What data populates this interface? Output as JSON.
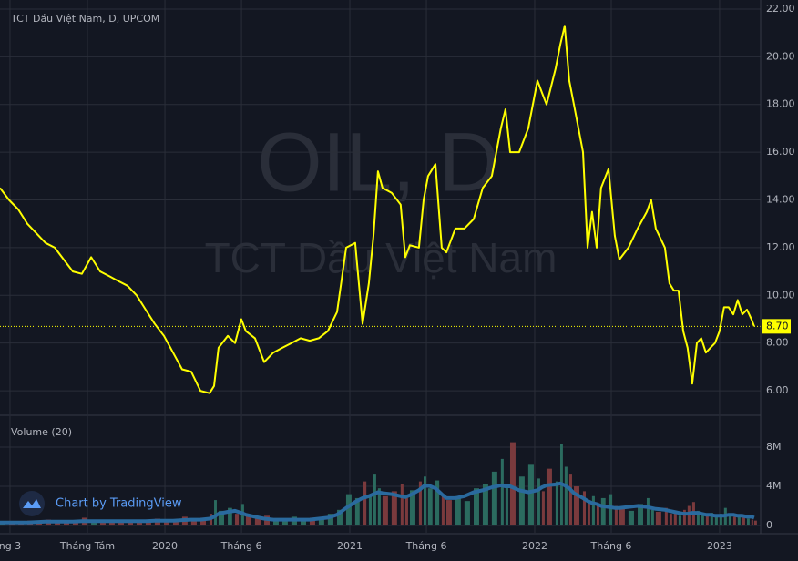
{
  "chart_data": [
    {
      "type": "line",
      "title": "TCT Dầu Việt Nam, D, UPCOM",
      "watermark": "OIL, D",
      "watermark_subtitle": "TCT Dầu Việt Nam",
      "x": [
        2019.108,
        2019.157,
        2019.207,
        2019.256,
        2019.305,
        2019.354,
        2019.404,
        2019.453,
        2019.502,
        2019.551,
        2019.601,
        2019.65,
        2019.699,
        2019.748,
        2019.798,
        2019.847,
        2019.896,
        2019.945,
        2019.995,
        2020.044,
        2020.093,
        2020.142,
        2020.192,
        2020.241,
        2020.266,
        2020.29,
        2020.34,
        2020.379,
        2020.413,
        2020.438,
        2020.487,
        2020.537,
        2020.586,
        2020.635,
        2020.684,
        2020.734,
        2020.783,
        2020.832,
        2020.881,
        2020.931,
        2020.98,
        2021.029,
        2021.069,
        2021.103,
        2021.128,
        2021.152,
        2021.177,
        2021.226,
        2021.275,
        2021.3,
        2021.325,
        2021.374,
        2021.399,
        2021.423,
        2021.463,
        2021.497,
        2021.522,
        2021.571,
        2021.62,
        2021.67,
        2021.719,
        2021.768,
        2021.817,
        2021.842,
        2021.867,
        2021.916,
        2021.965,
        2022.015,
        2022.039,
        2022.064,
        2022.113,
        2022.138,
        2022.162,
        2022.187,
        2022.212,
        2022.261,
        2022.286,
        2022.31,
        2022.335,
        2022.359,
        2022.399,
        2022.433,
        2022.458,
        2022.507,
        2022.557,
        2022.606,
        2022.63,
        2022.655,
        2022.704,
        2022.729,
        2022.753,
        2022.778,
        2022.803,
        2022.827,
        2022.852,
        2022.877,
        2022.901,
        2022.926,
        2022.95,
        2022.975,
        2023.0,
        2023.024,
        2023.049,
        2023.074,
        2023.098,
        2023.123,
        2023.148,
        2023.172,
        2023.187
      ],
      "series": [
        {
          "color": "#ffff00",
          "values": [
            14.5,
            14.0,
            13.6,
            13.0,
            12.6,
            12.2,
            12.0,
            11.5,
            11.0,
            10.9,
            11.6,
            11.0,
            10.8,
            10.6,
            10.4,
            10.0,
            9.4,
            8.8,
            8.3,
            7.6,
            6.9,
            6.8,
            6.0,
            5.9,
            6.2,
            7.8,
            8.3,
            8.0,
            9.0,
            8.5,
            8.2,
            7.2,
            7.6,
            7.8,
            8.0,
            8.2,
            8.1,
            8.2,
            8.5,
            9.3,
            12.0,
            12.2,
            8.8,
            10.5,
            12.5,
            15.2,
            14.5,
            14.3,
            13.8,
            11.6,
            12.1,
            12.0,
            14.0,
            15.0,
            15.5,
            12.0,
            11.8,
            12.8,
            12.8,
            13.2,
            14.5,
            15.0,
            17.0,
            17.8,
            16.0,
            16.0,
            17.0,
            19.0,
            18.5,
            18.0,
            19.5,
            20.5,
            21.3,
            19.0,
            18.0,
            16.0,
            12.0,
            13.5,
            12.0,
            14.5,
            15.3,
            12.5,
            11.5,
            12.0,
            12.8,
            13.5,
            14.0,
            12.8,
            12.0,
            10.5,
            10.2,
            10.2,
            8.5,
            7.8,
            6.3,
            8.0,
            8.2,
            7.6,
            7.8,
            8.0,
            8.5,
            9.5,
            9.5,
            9.2,
            9.8,
            9.2,
            9.4,
            9.0,
            8.7
          ]
        }
      ],
      "last_value": {
        "value": 8.7,
        "label": "8.70"
      },
      "xlim": [
        2019.108,
        2023.222
      ],
      "xticks": [
        {
          "value": 2019.162,
          "label": "ng 3"
        },
        {
          "value": 2019.581,
          "label": "Tháng Tám"
        },
        {
          "value": 2020,
          "label": "2020"
        },
        {
          "value": 2020.414,
          "label": "Tháng 6"
        },
        {
          "value": 2021,
          "label": "2021"
        },
        {
          "value": 2021.414,
          "label": "Tháng 6"
        },
        {
          "value": 2022,
          "label": "2022"
        },
        {
          "value": 2022.414,
          "label": "Tháng 6"
        },
        {
          "value": 2023,
          "label": "2023"
        }
      ],
      "ylim": [
        5.01,
        22.38
      ],
      "yticks": [
        {
          "value": 6,
          "label": "6.00"
        },
        {
          "value": 8,
          "label": "8.00"
        },
        {
          "value": 10,
          "label": "10.00"
        },
        {
          "value": 12,
          "label": "12.00"
        },
        {
          "value": 14,
          "label": "14.00"
        },
        {
          "value": 16,
          "label": "16.00"
        },
        {
          "value": 18,
          "label": "18.00"
        },
        {
          "value": 20,
          "label": "20.00"
        },
        {
          "value": 22,
          "label": "22.00"
        }
      ],
      "grid": true
    },
    {
      "type": "volume",
      "title": "Volume (20)",
      "up_color": "#2b6b5f",
      "down_color": "#7a3a3d",
      "series": [
        {
          "values": [
            0.3,
            0.4,
            0.2,
            0.5,
            0.3,
            0.6,
            0.4,
            0.3,
            0.5,
            0.8,
            0.4,
            0.3,
            0.5,
            0.4,
            0.6,
            0.3,
            0.5,
            0.7,
            0.4,
            0.6,
            0.9,
            0.5,
            0.8,
            1.2,
            2.6,
            1.5,
            1.8,
            1.2,
            2.2,
            1.0,
            0.8,
            1.0,
            0.6,
            0.7,
            0.9,
            0.6,
            0.8,
            0.7,
            1.2,
            1.6,
            3.2,
            2.8,
            4.5,
            3.0,
            5.2,
            3.8,
            3.0,
            3.5,
            4.2,
            2.8,
            3.6,
            4.5,
            5.0,
            3.8,
            4.6,
            3.2,
            2.6,
            3.0,
            2.5,
            3.8,
            4.2,
            5.5,
            6.8,
            4.0,
            8.5,
            5.0,
            6.2,
            4.8,
            3.5,
            5.8,
            4.5,
            8.3,
            6.0,
            5.2,
            4.0,
            3.5,
            2.5,
            3.0,
            2.2,
            2.8,
            3.2,
            2.0,
            1.8,
            1.5,
            2.2,
            2.8,
            1.6,
            1.4,
            1.8,
            1.2,
            1.5,
            1.0,
            1.6,
            2.0,
            2.4,
            1.5,
            1.2,
            1.0,
            1.3,
            0.9,
            1.2,
            1.8,
            1.1,
            0.9,
            1.0,
            0.8,
            0.7,
            0.6,
            0.5
          ]
        },
        {
          "color": "#2a6a9e",
          "values": [
            0.3,
            0.3,
            0.3,
            0.3,
            0.35,
            0.4,
            0.4,
            0.4,
            0.4,
            0.45,
            0.45,
            0.45,
            0.45,
            0.45,
            0.45,
            0.45,
            0.45,
            0.5,
            0.5,
            0.5,
            0.55,
            0.6,
            0.6,
            0.7,
            0.9,
            1.2,
            1.4,
            1.5,
            1.3,
            1.1,
            0.9,
            0.7,
            0.6,
            0.6,
            0.6,
            0.6,
            0.6,
            0.7,
            0.8,
            1.1,
            1.8,
            2.4,
            2.8,
            3.0,
            3.2,
            3.4,
            3.3,
            3.2,
            3.0,
            2.9,
            3.1,
            3.6,
            4.0,
            4.1,
            3.8,
            3.2,
            2.8,
            2.8,
            3.0,
            3.4,
            3.6,
            3.9,
            4.1,
            4.0,
            4.0,
            3.6,
            3.4,
            3.6,
            3.9,
            4.1,
            4.2,
            4.3,
            4.1,
            3.8,
            3.3,
            2.8,
            2.5,
            2.3,
            2.2,
            2.0,
            1.9,
            1.8,
            1.8,
            1.9,
            2.0,
            1.9,
            1.8,
            1.7,
            1.6,
            1.5,
            1.4,
            1.3,
            1.2,
            1.2,
            1.3,
            1.3,
            1.2,
            1.1,
            1.1,
            1.0,
            1.0,
            1.0,
            1.1,
            1.1,
            1.0,
            1.0,
            0.9,
            0.9,
            0.8
          ]
        }
      ],
      "ylim": [
        -0.74,
        11.16
      ],
      "yticks": [
        0,
        {
          "value": 4,
          "label": "4M"
        },
        {
          "value": 8,
          "label": "8M"
        }
      ]
    }
  ],
  "attribution": "Chart by TradingView"
}
